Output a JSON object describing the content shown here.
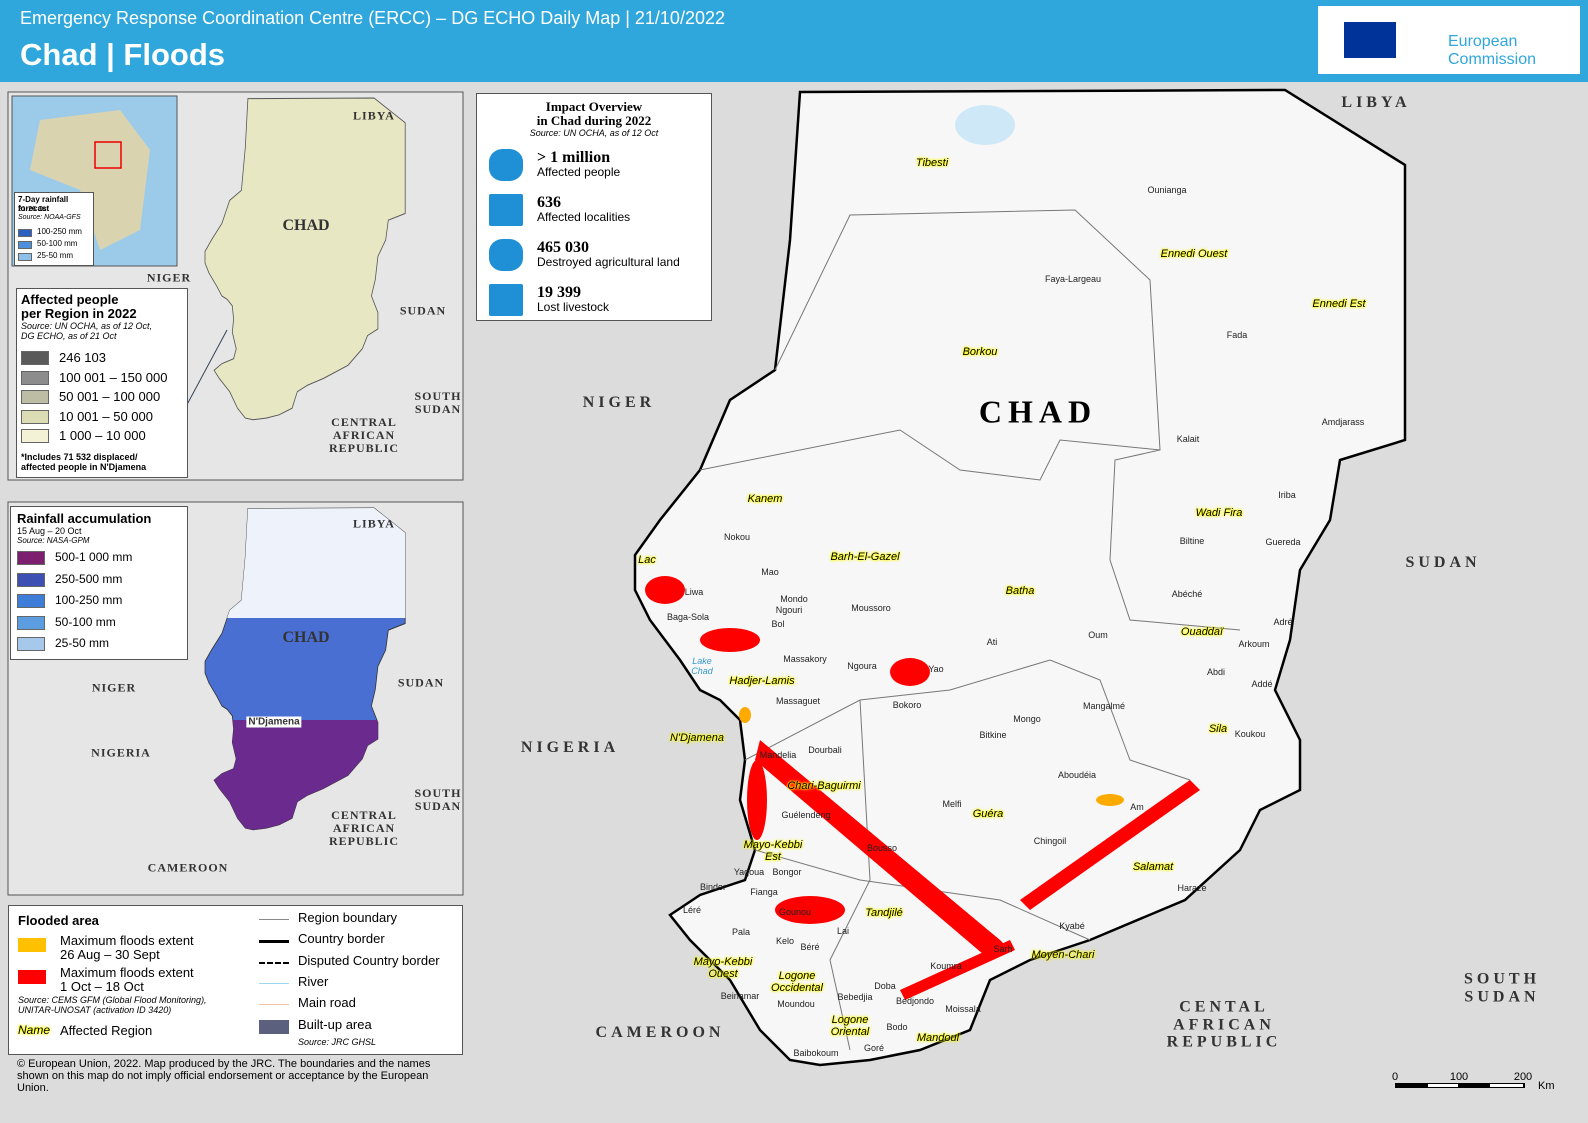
{
  "header": {
    "subtitle": "Emergency Response Coordination Centre (ERCC) – DG ECHO Daily Map | 21/10/2022",
    "title": "Chad | Floods",
    "logo": "European\nCommission"
  },
  "forecast_inset": {
    "labels": [
      "LIBYA",
      "CHAD",
      "NIGER",
      "SUDAN",
      "SOUTH\nSUDAN",
      "CENTRAL\nAFRICAN\nREPUBLIC"
    ],
    "legend": {
      "title": "7-Day rainfall forecast",
      "dates": "21-26 Oct",
      "source": "Source: NOAA-GFS",
      "items": [
        "100-250 mm",
        "50-100 mm",
        "25-50 mm"
      ]
    }
  },
  "affected_people": {
    "title": "Affected people\nper Region in 2022",
    "source": "Source: UN OCHA, as of 12 Oct,\nDG ECHO, as of 21 Oct",
    "items": [
      "246 103",
      "100 001 – 150 000",
      "50 001 – 100 000",
      "10 001 – 50 000",
      "1 000 – 10 000"
    ],
    "note": "*Includes 71 532 displaced/\naffected people in N'Djamena"
  },
  "rainfall_inset": {
    "labels": [
      "LIBYA",
      "CHAD",
      "NIGER",
      "SUDAN",
      "NIGERIA",
      "N'Djamena",
      "SOUTH\nSUDAN",
      "CENTRAL\nAFRICAN\nREPUBLIC",
      "CAMEROON"
    ],
    "legend": {
      "title": "Rainfall accumulation",
      "dates": "15 Aug – 20 Oct",
      "source": "Source: NASA-GPM",
      "items": [
        "500-1 000 mm",
        "250-500 mm",
        "100-250 mm",
        "50-100 mm",
        "25-50 mm"
      ]
    }
  },
  "impact": {
    "title": "Impact Overview\nin Chad during 2022",
    "source": "Source: UN OCHA, as of 12 Oct",
    "items": [
      {
        "value": "> 1 million",
        "label": "Affected people"
      },
      {
        "value": "636",
        "label": "Affected localities"
      },
      {
        "value": "465 030",
        "label": "Destroyed agricultural land"
      },
      {
        "value": "19 399",
        "label": "Lost livestock"
      }
    ]
  },
  "map": {
    "country_name": "CHAD",
    "countries": [
      "LIBYA",
      "NIGER",
      "NIGERIA",
      "SUDAN",
      "SOUTH\nSUDAN",
      "CENTAL\nAFRICAN\nREPUBLIC",
      "CAMEROON"
    ],
    "regions": [
      "Tibesti",
      "Borkou",
      "Ennedi Ouest",
      "Ennedi Est",
      "Wadi Fira",
      "Kanem",
      "Lac",
      "Barh-El-Gazel",
      "Batha",
      "Ouaddaï",
      "Hadjer-Lamis",
      "N'Djamena",
      "Sila",
      "Chari-Baguirmi",
      "Guéra",
      "Salamat",
      "Mayo-Kebbi\nEst",
      "Tandjilé",
      "Mayo-Kebbi\nOuest",
      "Logone\nOccidental",
      "Logone\nOriental",
      "Mandoul",
      "Moyen-Chari"
    ],
    "places": [
      "Ounianga",
      "Faya-Largeau",
      "Fada",
      "Kalait",
      "Amdjarass",
      "Iriba",
      "Biltine",
      "Guereda",
      "Abéché",
      "Adré",
      "Arkoum",
      "Abdi",
      "Addé",
      "Koukou",
      "Oum",
      "Ati",
      "Yao",
      "Ngoura",
      "Bokoro",
      "Mangalmé",
      "Mongo",
      "Bitkine",
      "Aboudéia",
      "Am",
      "Melfi",
      "Chingoil",
      "Haraze",
      "Kyabé",
      "Sarh",
      "Koumra",
      "Moissala",
      "Bedjondo",
      "Bodo",
      "Goré",
      "Baibokoum",
      "Bebedjia",
      "Doba",
      "Moundou",
      "Beinamar",
      "Béré",
      "Kelo",
      "Lai",
      "Pala",
      "Léré",
      "Fianga",
      "Binder",
      "Gounou",
      "Bongor",
      "Yagoua",
      "Guélendeng",
      "Bousso",
      "Mandelia",
      "Dourbali",
      "Massaguet",
      "Massakory",
      "Bol",
      "Baga-Sola",
      "Liwa",
      "Ngouri",
      "Mondo",
      "Moussoro",
      "Mao",
      "Nokou",
      "Lake\nChad"
    ]
  },
  "legend": {
    "flood_title": "Flooded area",
    "flood_items": [
      "Maximum floods extent\n26 Aug – 30 Sept",
      "Maximum floods extent\n1 Oct – 18 Oct"
    ],
    "flood_source": "Source: CEMS GFM (Global Flood Monitoring),\nUNITAR-UNOSAT (activation ID 3420)",
    "region_sample": "Name",
    "region_label": "Affected Region",
    "line_items": [
      "Region boundary",
      "Country border",
      "Disputed Country border",
      "River",
      "Main road",
      "Built-up area"
    ],
    "builtup_source": "Source: JRC GHSL"
  },
  "copyright": "© European Union, 2022. Map produced by the JRC. The boundaries and the names shown on this map do not imply official endorsement or acceptance by the European Union.",
  "scale": {
    "ticks": [
      "0",
      "100",
      "200"
    ],
    "unit": "Km"
  }
}
